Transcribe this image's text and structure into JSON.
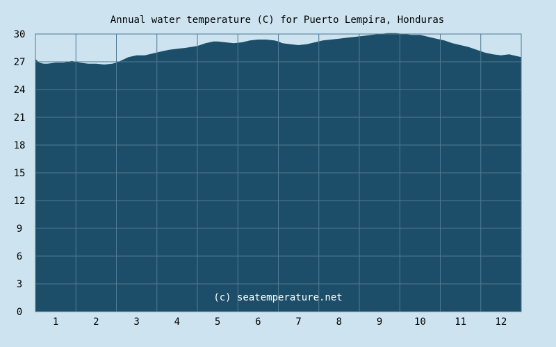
{
  "chart_data": {
    "type": "area",
    "title": "Annual water temperature (C) for Puerto Lempira, Honduras",
    "xlabel": "",
    "ylabel": "",
    "x_ticks": [
      "1",
      "2",
      "3",
      "4",
      "5",
      "6",
      "7",
      "8",
      "9",
      "10",
      "11",
      "12"
    ],
    "y_ticks": [
      "0",
      "3",
      "6",
      "9",
      "12",
      "15",
      "18",
      "21",
      "24",
      "27",
      "30"
    ],
    "xlim": [
      0.5,
      12.5
    ],
    "ylim": [
      0,
      30
    ],
    "grid": true,
    "credit": "(c) seatemperature.net",
    "colors": {
      "background": "#cde3ef",
      "area": "#1d4e69",
      "grid": "#4f7a92",
      "frame": "#4f7a92"
    },
    "series": [
      {
        "x": [
          0.5,
          0.55,
          0.6,
          0.7,
          0.8,
          1.0,
          1.2,
          1.4,
          1.5,
          1.6,
          1.8,
          2.0,
          2.2,
          2.4,
          2.5,
          2.6,
          2.7,
          2.8,
          3.0,
          3.2,
          3.4,
          3.6,
          3.8,
          4.0,
          4.2,
          4.5,
          4.7,
          4.9,
          5.0,
          5.2,
          5.4,
          5.6,
          5.8,
          6.0,
          6.2,
          6.4,
          6.5,
          6.6,
          6.8,
          7.0,
          7.2,
          7.4,
          7.6,
          7.8,
          8.0,
          8.2,
          8.4,
          8.6,
          8.8,
          9.0,
          9.2,
          9.4,
          9.6,
          9.8,
          10.0,
          10.2,
          10.4,
          10.6,
          10.8,
          11.0,
          11.2,
          11.4,
          11.6,
          11.8,
          12.0,
          12.2,
          12.4,
          12.5
        ],
        "y": [
          27.3,
          27.1,
          26.9,
          26.8,
          26.8,
          26.9,
          26.9,
          27.1,
          27.0,
          26.9,
          26.8,
          26.8,
          26.7,
          26.8,
          26.9,
          27.1,
          27.3,
          27.5,
          27.7,
          27.7,
          27.9,
          28.1,
          28.3,
          28.4,
          28.5,
          28.7,
          29.0,
          29.2,
          29.2,
          29.1,
          29.0,
          29.1,
          29.3,
          29.4,
          29.4,
          29.3,
          29.2,
          29.0,
          28.9,
          28.8,
          28.9,
          29.1,
          29.3,
          29.4,
          29.5,
          29.6,
          29.7,
          29.8,
          29.9,
          30.0,
          30.1,
          30.1,
          30.0,
          29.9,
          29.9,
          29.7,
          29.5,
          29.3,
          29.0,
          28.8,
          28.6,
          28.3,
          28.0,
          27.8,
          27.7,
          27.8,
          27.6,
          27.5
        ]
      }
    ]
  }
}
